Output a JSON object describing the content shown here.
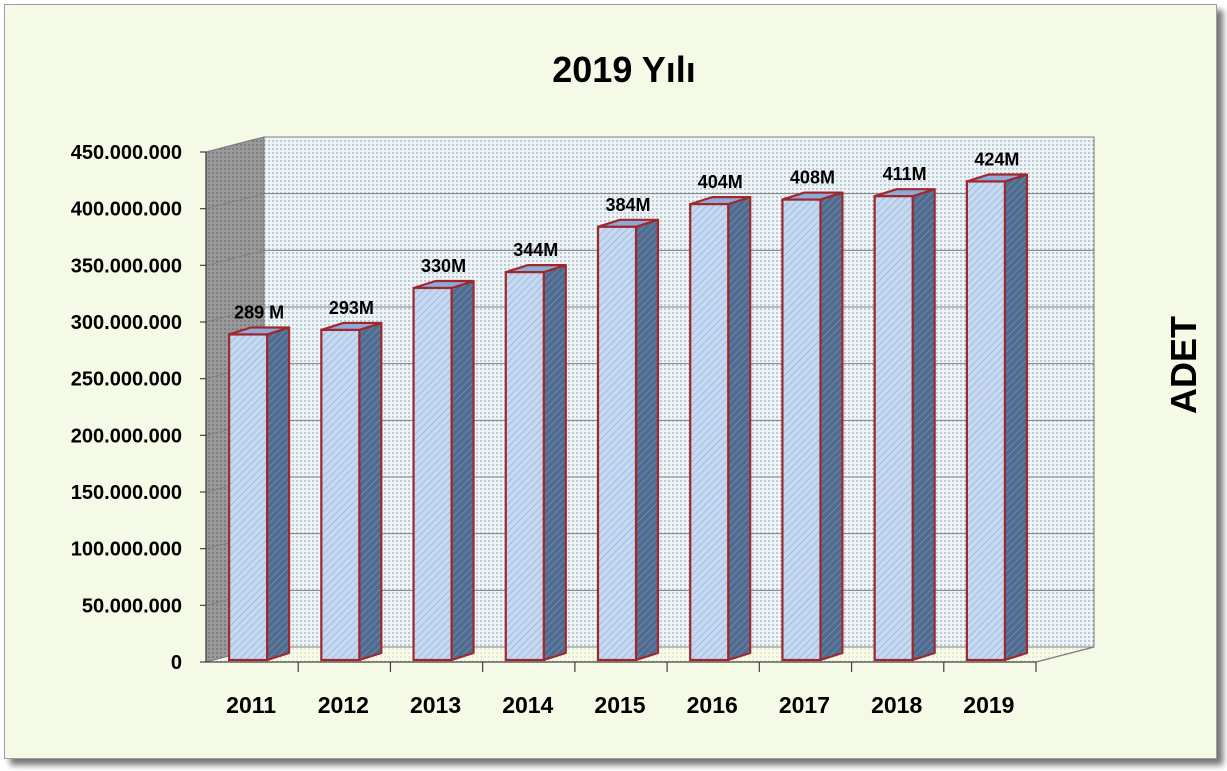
{
  "chart_data": {
    "type": "bar",
    "title": "2019 Yılı",
    "categories": [
      "2011",
      "2012",
      "2013",
      "2014",
      "2015",
      "2016",
      "2017",
      "2018",
      "2019"
    ],
    "values": [
      289000000,
      293000000,
      330000000,
      344000000,
      384000000,
      404000000,
      408000000,
      411000000,
      424000000
    ],
    "data_labels": [
      "289 M",
      "293M",
      "330M",
      "344M",
      "384M",
      "404M",
      "408M",
      "411M",
      "424M"
    ],
    "y_tick_labels": [
      "0",
      "50.000.000",
      "100.000.000",
      "150.000.000",
      "200.000.000",
      "250.000.000",
      "300.000.000",
      "350.000.000",
      "400.000.000",
      "450.000.000"
    ],
    "y_tick_values": [
      0,
      50000000,
      100000000,
      150000000,
      200000000,
      250000000,
      300000000,
      350000000,
      400000000,
      450000000
    ],
    "ylim": [
      0,
      450000000
    ],
    "ylabel": "ADET",
    "xlabel": "",
    "grid": true,
    "legend": "none",
    "colors": {
      "bar_front": "#c6d9f1",
      "bar_side": "#4f6b8f",
      "bar_top": "#8eaad6",
      "bar_outline": "#a0282d",
      "plot_back": "#eef3f6",
      "plot_wall": "#8c8c8c",
      "background": "#f5fae6"
    }
  }
}
